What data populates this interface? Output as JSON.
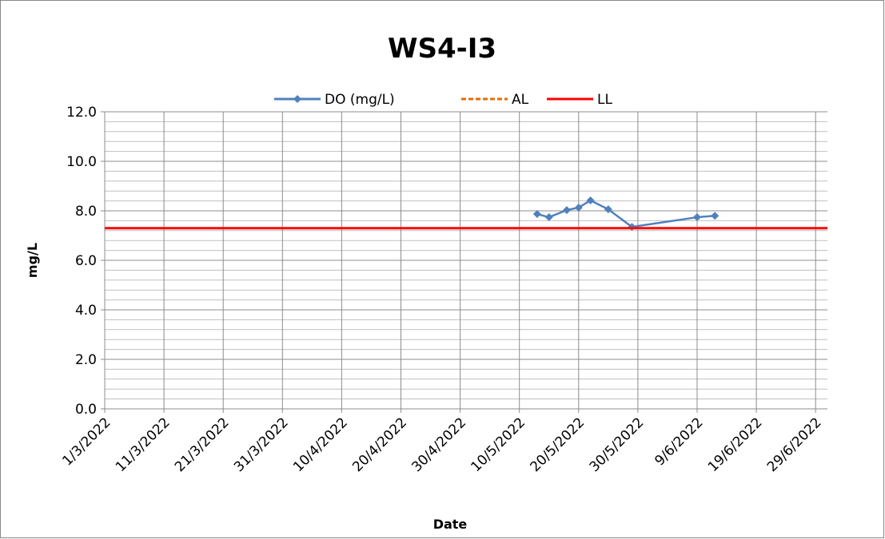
{
  "chart_data": {
    "type": "line",
    "title": "WS4-I3",
    "xlabel": "Date",
    "ylabel": "mg/L",
    "xlim": [
      "2022-03-01",
      "2022-07-01"
    ],
    "xticks": [
      {
        "value": "2022-03-01",
        "label": "1/3/2022"
      },
      {
        "value": "2022-03-11",
        "label": "11/3/2022"
      },
      {
        "value": "2022-03-21",
        "label": "21/3/2022"
      },
      {
        "value": "2022-03-31",
        "label": "31/3/2022"
      },
      {
        "value": "2022-04-10",
        "label": "10/4/2022"
      },
      {
        "value": "2022-04-20",
        "label": "20/4/2022"
      },
      {
        "value": "2022-04-30",
        "label": "30/4/2022"
      },
      {
        "value": "2022-05-10",
        "label": "10/5/2022"
      },
      {
        "value": "2022-05-20",
        "label": "20/5/2022"
      },
      {
        "value": "2022-05-30",
        "label": "30/5/2022"
      },
      {
        "value": "2022-06-09",
        "label": "9/6/2022"
      },
      {
        "value": "2022-06-19",
        "label": "19/6/2022"
      },
      {
        "value": "2022-06-29",
        "label": "29/6/2022"
      }
    ],
    "ylim": [
      0,
      12
    ],
    "yticks": [
      {
        "value": 0,
        "label": "0.0"
      },
      {
        "value": 2,
        "label": "2.0"
      },
      {
        "value": 4,
        "label": "4.0"
      },
      {
        "value": 6,
        "label": "6.0"
      },
      {
        "value": 8,
        "label": "8.0"
      },
      {
        "value": 10,
        "label": "10.0"
      },
      {
        "value": 12,
        "label": "12.0"
      }
    ],
    "yminorticks": [
      0.4,
      0.8,
      1.2,
      1.6,
      2.4,
      2.8,
      3.2,
      3.6,
      4.4,
      4.8,
      5.2,
      5.6,
      6.4,
      6.8,
      7.2,
      7.6,
      8.4,
      8.8,
      9.2,
      9.6,
      10.4,
      10.8,
      11.2,
      11.6
    ],
    "grid": true,
    "legend": "top",
    "series": [
      {
        "name": "DO (mg/L)",
        "color": "#4f81bd",
        "marker": "diamond",
        "dash": false,
        "x": [
          "2022-05-13",
          "2022-05-15",
          "2022-05-18",
          "2022-05-20",
          "2022-05-22",
          "2022-05-25",
          "2022-05-29",
          "2022-06-09",
          "2022-06-12"
        ],
        "values": [
          7.87,
          7.74,
          8.03,
          8.13,
          8.42,
          8.06,
          7.35,
          7.74,
          7.8
        ]
      },
      {
        "name": "AL",
        "color": "#e46c0a",
        "dash": true,
        "x": [
          "2022-03-01",
          "2022-07-01"
        ],
        "values": [
          7.3,
          7.3
        ]
      },
      {
        "name": "LL",
        "color": "#ff0000",
        "dash": false,
        "x": [
          "2022-03-01",
          "2022-07-01"
        ],
        "values": [
          7.3,
          7.3
        ]
      }
    ]
  }
}
